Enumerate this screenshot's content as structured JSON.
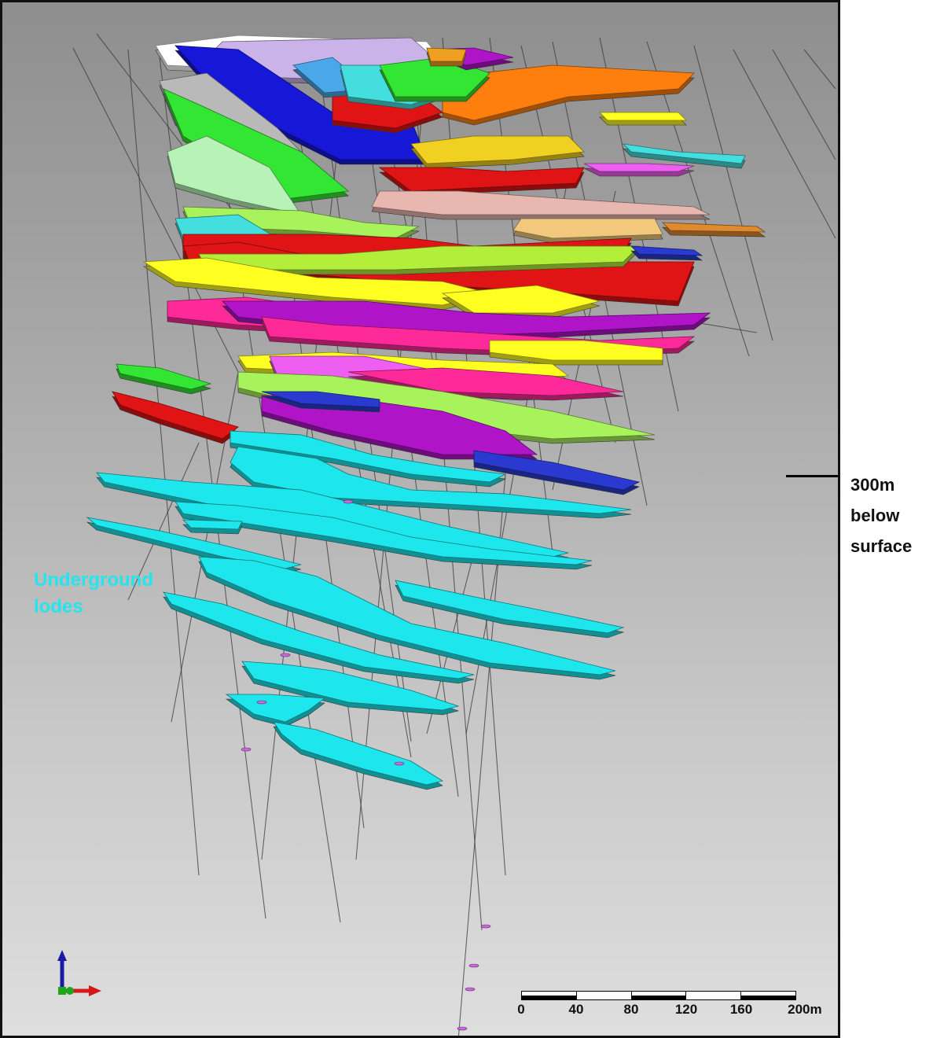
{
  "annotations": {
    "lodes_label": "Underground\nlodes",
    "lodes_label_color": "#22e5ee",
    "depth_label_lines": [
      "300m",
      "below",
      "surface"
    ]
  },
  "scale_bar": {
    "ticks": [
      "0",
      "40",
      "80",
      "120",
      "160",
      "200m"
    ]
  },
  "axes_triad": {
    "up_color": "#1a1aa8",
    "right_color": "#d21a1a",
    "origin_color": "#1ea51e"
  },
  "lode_colors": {
    "underground": "#1de6ec",
    "palette": [
      "#ffffff",
      "#c9b3e8",
      "#1717d8",
      "#b9b9b9",
      "#33e633",
      "#b7f2b7",
      "#ff7f0e",
      "#e01414",
      "#ffff22",
      "#ff2a9a",
      "#b014c8",
      "#ee5ef0",
      "#a8f25c",
      "#f2c97c",
      "#e8b7b0",
      "#f0d020"
    ]
  }
}
